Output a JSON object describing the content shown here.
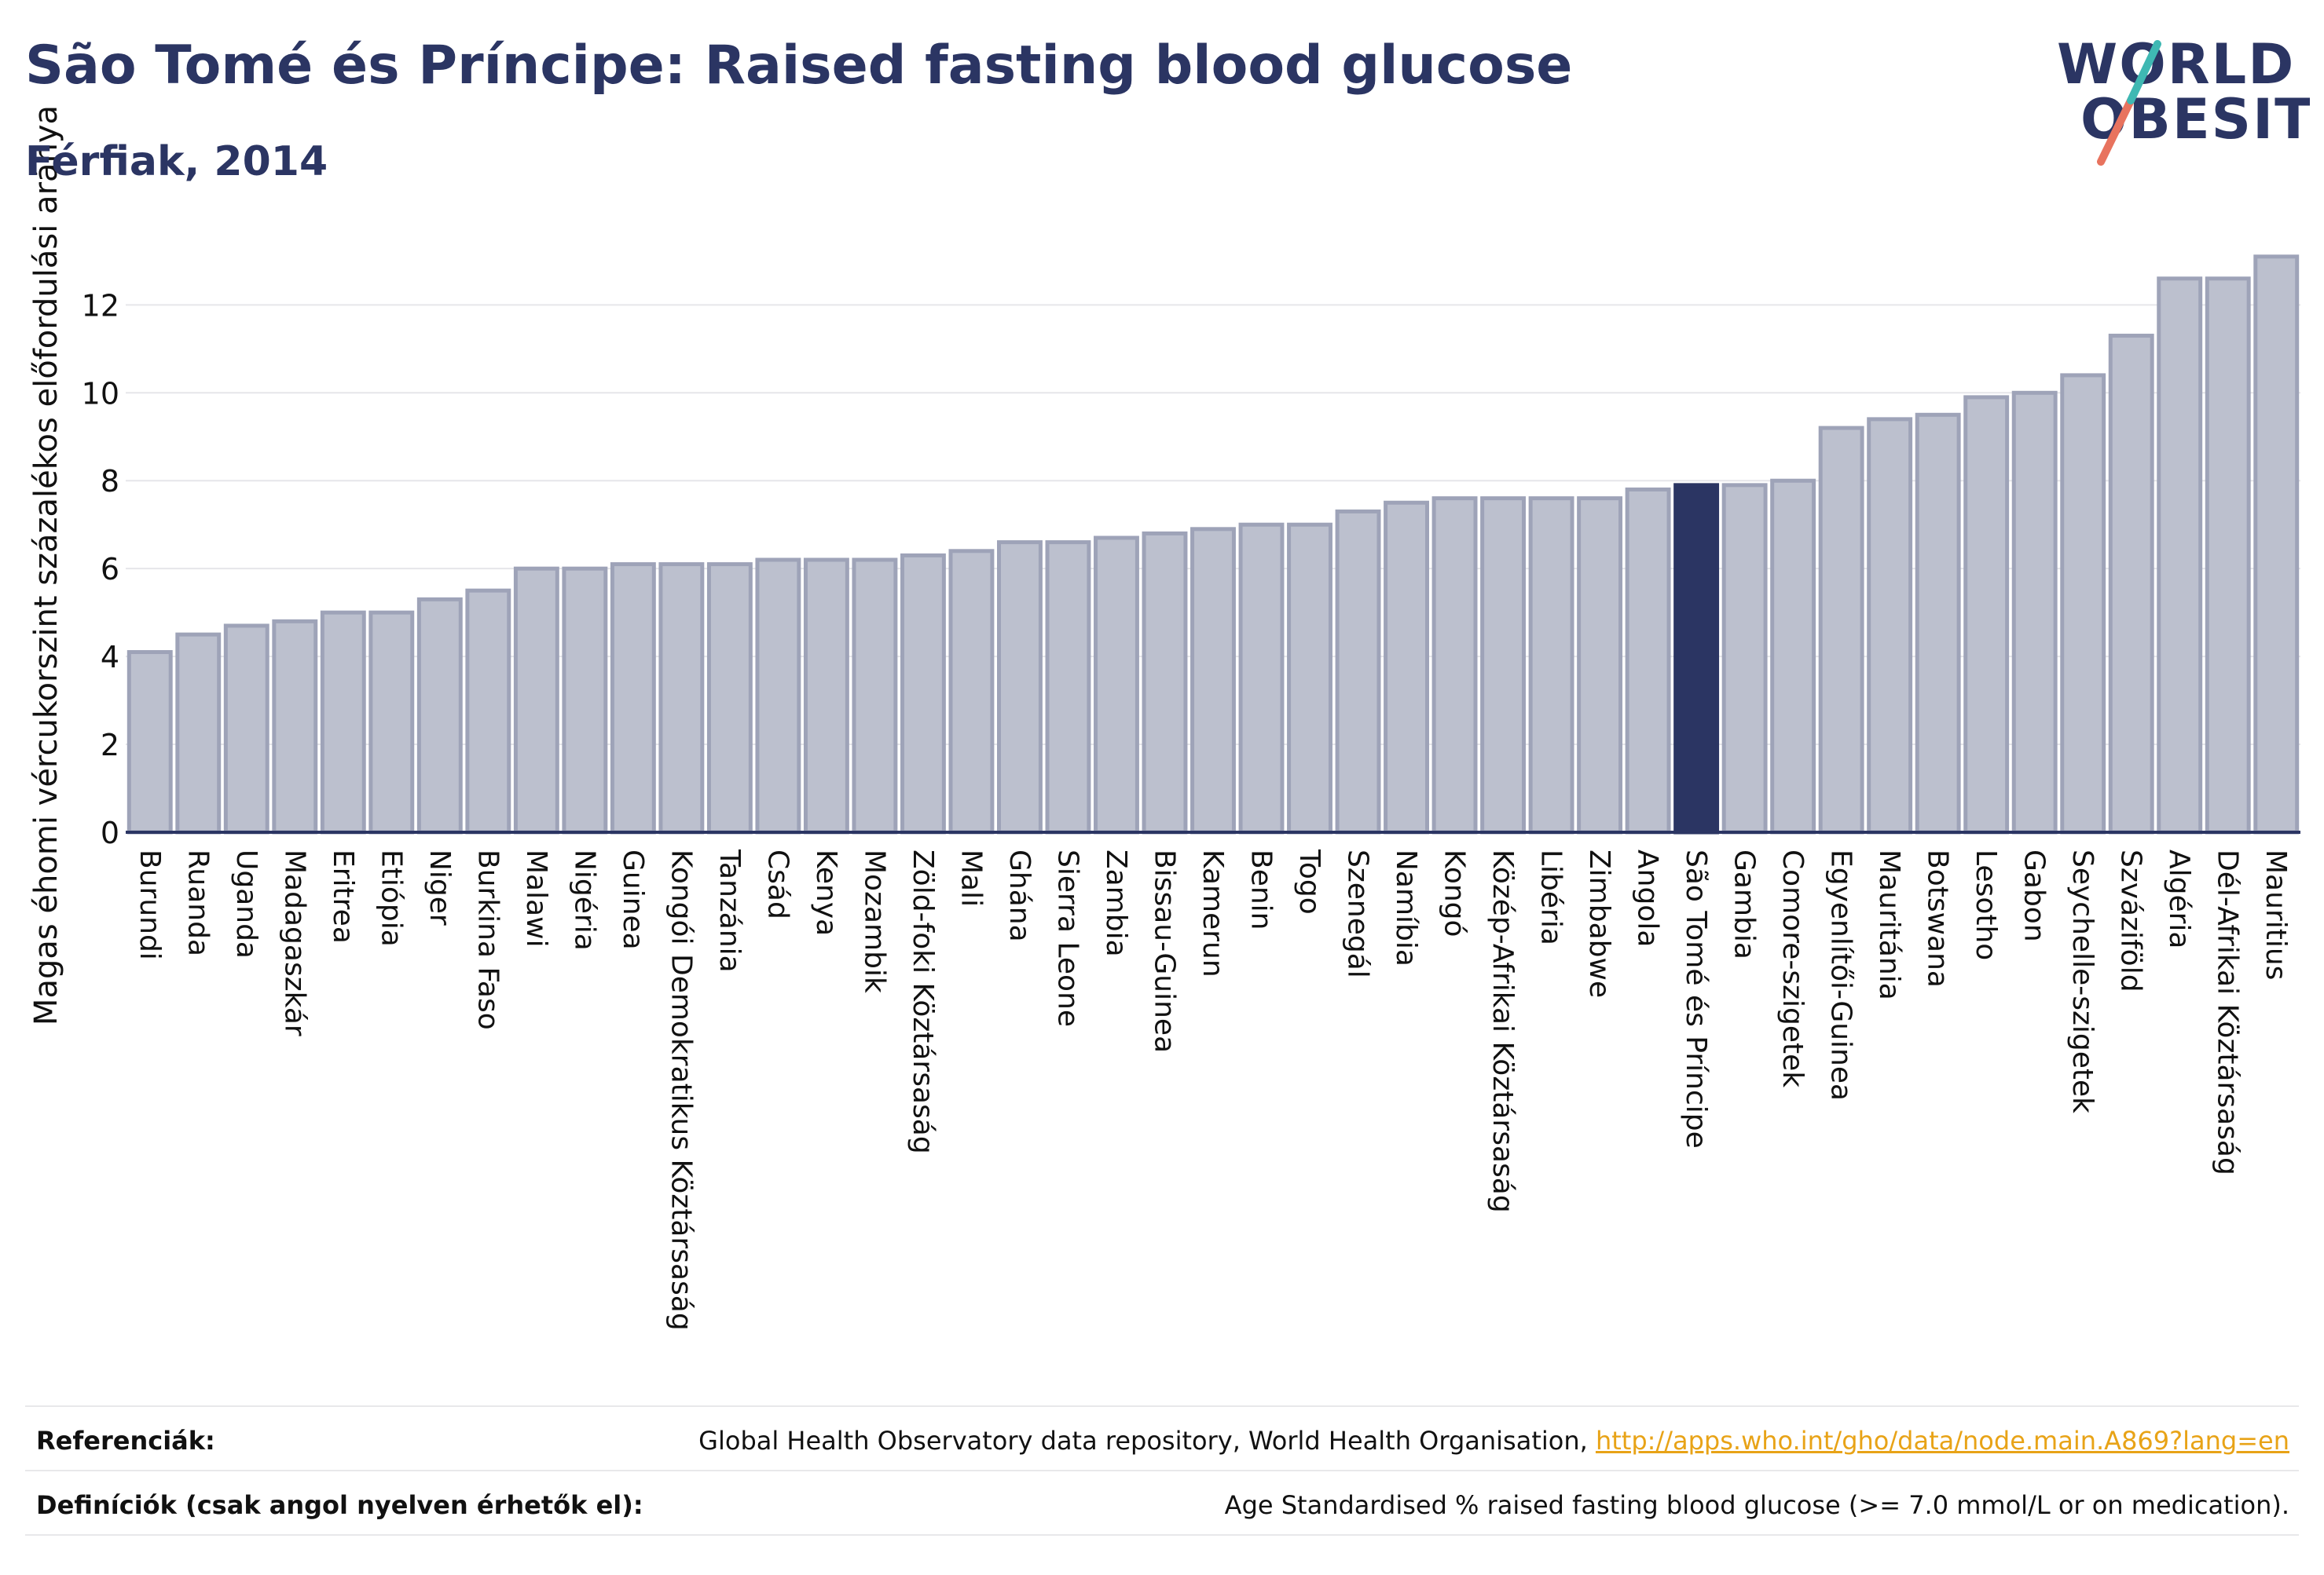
{
  "header": {
    "title": "São Tomé és Príncipe: Raised fasting blood glucose",
    "subtitle": "Férfiak, 2014"
  },
  "logo": {
    "line1": "WORLD",
    "line2": "OBESITY"
  },
  "colors": {
    "bar": "#bcc0ce",
    "bar_edge": "#9ea3b8",
    "highlight": "#2b3563",
    "axis": "#2b3563",
    "grid": "#e6e6ea",
    "link": "#e8a317"
  },
  "chart_data": {
    "type": "bar",
    "title": "São Tomé és Príncipe: Raised fasting blood glucose",
    "subtitle": "Férfiak, 2014",
    "xlabel": "",
    "ylabel": "Magas éhomi vércukorszint százalékos előfordulási aránya",
    "ylim": [
      0,
      13.4
    ],
    "yticks": [
      0,
      2,
      4,
      6,
      8,
      10,
      12
    ],
    "grid": true,
    "highlight": "São Tomé és Príncipe",
    "categories": [
      "Burundi",
      "Ruanda",
      "Uganda",
      "Madagaszkár",
      "Eritrea",
      "Etiópia",
      "Niger",
      "Burkina Faso",
      "Malawi",
      "Nigéria",
      "Guinea",
      "Kongói Demokratikus Köztársaság",
      "Tanzánia",
      "Csád",
      "Kenya",
      "Mozambik",
      "Zöld-foki Köztársaság",
      "Mali",
      "Ghána",
      "Sierra Leone",
      "Zambia",
      "Bissau-Guinea",
      "Kamerun",
      "Benin",
      "Togo",
      "Szenegál",
      "Namíbia",
      "Kongó",
      "Közép-Afrikai Köztársaság",
      "Libéria",
      "Zimbabwe",
      "Angola",
      "São Tomé és Príncipe",
      "Gambia",
      "Comore-szigetek",
      "Egyenlítői-Guinea",
      "Mauritánia",
      "Botswana",
      "Lesotho",
      "Gabon",
      "Seychelle-szigetek",
      "Szváziföld",
      "Algéria",
      "Dél-Afrikai Köztársaság",
      "Mauritius"
    ],
    "values": [
      4.1,
      4.5,
      4.7,
      4.8,
      5.0,
      5.0,
      5.3,
      5.5,
      6.0,
      6.0,
      6.1,
      6.1,
      6.1,
      6.2,
      6.2,
      6.2,
      6.3,
      6.4,
      6.6,
      6.6,
      6.7,
      6.8,
      6.9,
      7.0,
      7.0,
      7.3,
      7.5,
      7.6,
      7.6,
      7.6,
      7.6,
      7.8,
      7.9,
      7.9,
      8.0,
      9.2,
      9.4,
      9.5,
      9.9,
      10.0,
      10.4,
      11.3,
      12.6,
      12.6,
      13.1
    ]
  },
  "references": {
    "label": "Referenciák:",
    "text": "Global Health Observatory data repository, World Health Organisation, ",
    "link": "http://apps.who.int/gho/data/node.main.A869?lang=en"
  },
  "definitions": {
    "label": "Definíciók (csak angol nyelven érhetők el):",
    "text": "Age Standardised % raised fasting blood glucose (>= 7.0 mmol/L or on medication)."
  }
}
